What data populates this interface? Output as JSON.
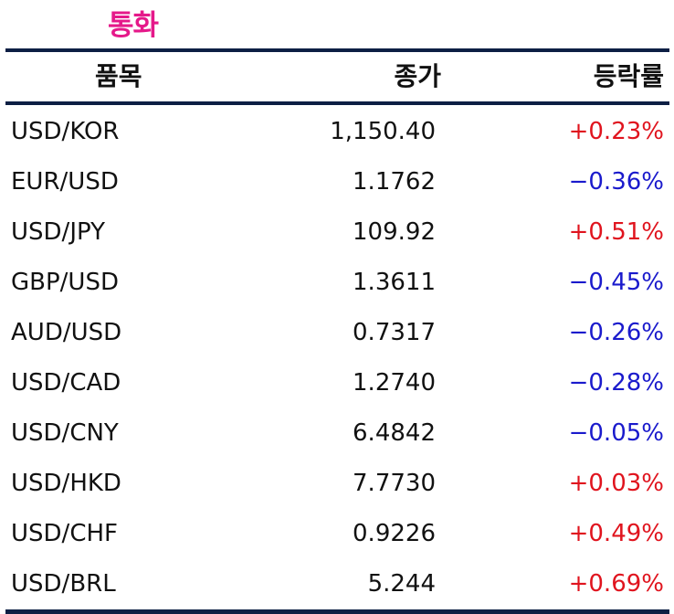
{
  "title": "통화",
  "columns": {
    "item": "품목",
    "close": "종가",
    "change": "등락률"
  },
  "colors": {
    "title": "#e5198a",
    "rule": "#0d1f44",
    "up": "#e0141e",
    "down": "#1a1acc"
  },
  "rows": [
    {
      "item": "USD/KOR",
      "close": "1,150.40",
      "change": "+0.23%",
      "direction": "up"
    },
    {
      "item": "EUR/USD",
      "close": "1.1762",
      "change": "−0.36%",
      "direction": "down"
    },
    {
      "item": "USD/JPY",
      "close": "109.92",
      "change": "+0.51%",
      "direction": "up"
    },
    {
      "item": "GBP/USD",
      "close": "1.3611",
      "change": "−0.45%",
      "direction": "down"
    },
    {
      "item": "AUD/USD",
      "close": "0.7317",
      "change": "−0.26%",
      "direction": "down"
    },
    {
      "item": "USD/CAD",
      "close": "1.2740",
      "change": "−0.28%",
      "direction": "down"
    },
    {
      "item": "USD/CNY",
      "close": "6.4842",
      "change": "−0.05%",
      "direction": "down"
    },
    {
      "item": "USD/HKD",
      "close": "7.7730",
      "change": "+0.03%",
      "direction": "up"
    },
    {
      "item": "USD/CHF",
      "close": "0.9226",
      "change": "+0.49%",
      "direction": "up"
    },
    {
      "item": "USD/BRL",
      "close": "5.244",
      "change": "+0.69%",
      "direction": "up"
    }
  ]
}
